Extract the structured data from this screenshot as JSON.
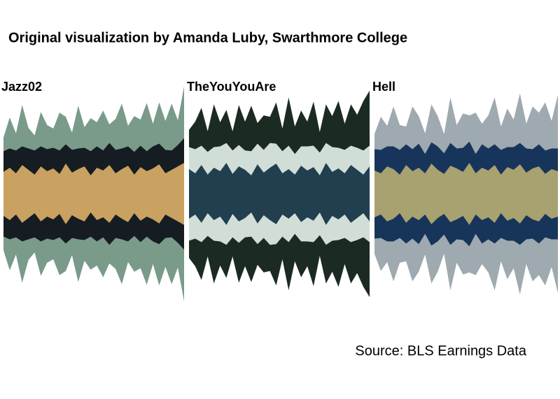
{
  "title": "Original visualization by Amanda Luby, Swarthmore College",
  "source": "Source: BLS Earnings Data",
  "chart_data": [
    {
      "type": "stream",
      "title": "Jazz02",
      "ylim": [
        -170,
        170
      ],
      "series": [
        {
          "color": "#c9a160",
          "values": [
            32,
            38,
            30,
            42,
            35,
            28,
            40,
            33,
            37,
            29,
            44,
            31,
            36,
            40,
            27,
            38,
            34,
            42,
            30,
            36,
            41,
            28,
            39,
            33,
            37,
            43,
            30,
            35,
            40,
            45
          ]
        },
        {
          "color": "#151c22",
          "values": [
            30,
            28,
            33,
            27,
            31,
            35,
            29,
            32,
            30,
            34,
            28,
            33,
            30,
            27,
            35,
            31,
            29,
            32,
            34,
            30,
            28,
            33,
            31,
            29,
            32,
            30,
            34,
            28,
            31,
            36
          ]
        },
        {
          "color": "#7a9a8a",
          "values": [
            20,
            45,
            25,
            60,
            30,
            22,
            50,
            35,
            28,
            55,
            40,
            25,
            62,
            30,
            48,
            35,
            58,
            27,
            45,
            65,
            30,
            52,
            38,
            70,
            33,
            60,
            42,
            68,
            36,
            75
          ]
        }
      ]
    },
    {
      "type": "stream",
      "title": "TheYouYouAre",
      "ylim": [
        -170,
        170
      ],
      "series": [
        {
          "color": "#223f4f",
          "values": [
            36,
            30,
            42,
            28,
            38,
            33,
            45,
            29,
            40,
            35,
            27,
            43,
            31,
            38,
            44,
            30,
            36,
            28,
            41,
            34,
            39,
            27,
            45,
            32,
            37,
            30,
            42,
            35,
            28,
            40
          ]
        },
        {
          "color": "#d1ded8",
          "values": [
            32,
            35,
            28,
            33,
            30,
            36,
            29,
            34,
            31,
            28,
            35,
            30,
            33,
            36,
            29,
            32,
            34,
            30,
            28,
            35,
            31,
            33,
            29,
            36,
            30,
            34,
            28,
            32,
            35,
            30
          ]
        },
        {
          "color": "#1b2b22",
          "values": [
            25,
            40,
            55,
            30,
            62,
            35,
            48,
            28,
            58,
            42,
            66,
            30,
            50,
            38,
            60,
            33,
            70,
            40,
            52,
            36,
            64,
            30,
            56,
            45,
            68,
            38,
            60,
            48,
            72,
            80
          ]
        }
      ]
    },
    {
      "type": "stream",
      "title": "Hell",
      "ylim": [
        -170,
        170
      ],
      "series": [
        {
          "color": "#a8a170",
          "values": [
            34,
            30,
            40,
            36,
            28,
            42,
            33,
            38,
            30,
            44,
            35,
            29,
            41,
            37,
            32,
            45,
            30,
            38,
            34,
            42,
            28,
            39,
            35,
            43,
            31,
            37,
            40,
            29,
            36,
            33
          ]
        },
        {
          "color": "#17355a",
          "values": [
            31,
            34,
            29,
            33,
            36,
            30,
            32,
            35,
            28,
            31,
            34,
            30,
            33,
            29,
            35,
            31,
            28,
            34,
            32,
            30,
            36,
            29,
            33,
            31,
            35,
            28,
            32,
            34,
            30,
            33
          ]
        },
        {
          "color": "#9eaab0",
          "values": [
            22,
            48,
            30,
            58,
            36,
            26,
            62,
            40,
            30,
            55,
            44,
            28,
            66,
            34,
            50,
            38,
            60,
            30,
            48,
            68,
            34,
            56,
            40,
            72,
            36,
            62,
            46,
            70,
            40,
            78
          ]
        }
      ]
    }
  ]
}
